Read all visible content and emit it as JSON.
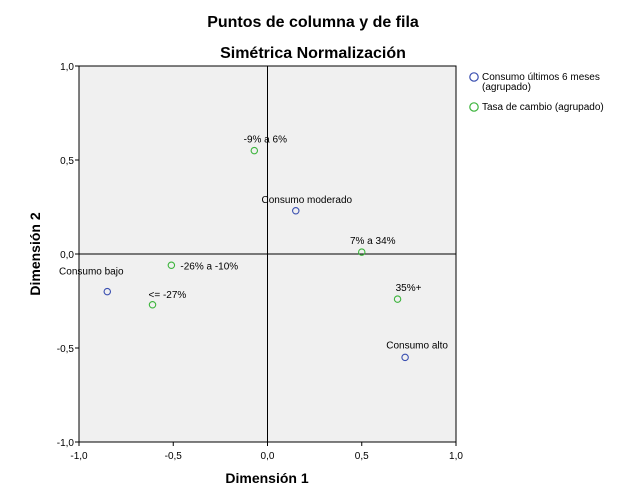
{
  "chart_data": {
    "type": "scatter",
    "title": "Puntos de columna y de fila",
    "subtitle": "Simétrica Normalización",
    "xlabel": "Dimensión 1",
    "ylabel": "Dimensión 2",
    "xlim": [
      -1.0,
      1.0
    ],
    "ylim": [
      -1.0,
      1.0
    ],
    "x_ticks": [
      -1.0,
      -0.5,
      0.0,
      0.5,
      1.0
    ],
    "y_ticks": [
      -1.0,
      -0.5,
      0.0,
      0.5,
      1.0
    ],
    "x_tick_labels": [
      "-1,0",
      "-0,5",
      "0,0",
      "0,5",
      "1,0"
    ],
    "y_tick_labels": [
      "-1,0",
      "-0,5",
      "0,0",
      "0,5",
      "1,0"
    ],
    "grid": false,
    "reference_lines": {
      "x": 0,
      "y": 0
    },
    "legend_position": "right",
    "series": [
      {
        "name": "Consumo últimos 6 meses (agrupado)",
        "legend_lines": [
          "Consumo últimos 6 meses",
          "(agrupado)"
        ],
        "color": "#3a4fb0",
        "points": [
          {
            "label": "Consumo bajo",
            "x": -0.85,
            "y": -0.2
          },
          {
            "label": "Consumo moderado",
            "x": 0.15,
            "y": 0.23
          },
          {
            "label": "Consumo alto",
            "x": 0.73,
            "y": -0.55
          }
        ]
      },
      {
        "name": "Tasa de cambio (agrupado)",
        "legend_lines": [
          "Tasa de cambio (agrupado)"
        ],
        "color": "#3cb43c",
        "points": [
          {
            "label": "-9% a 6%",
            "x": -0.07,
            "y": 0.55
          },
          {
            "label": "7% a 34%",
            "x": 0.5,
            "y": 0.01
          },
          {
            "label": "-26% a -10%",
            "x": -0.51,
            "y": -0.06
          },
          {
            "label": "<= -27%",
            "x": -0.61,
            "y": -0.27
          },
          {
            "label": "35%+",
            "x": 0.69,
            "y": -0.24
          }
        ]
      }
    ]
  }
}
